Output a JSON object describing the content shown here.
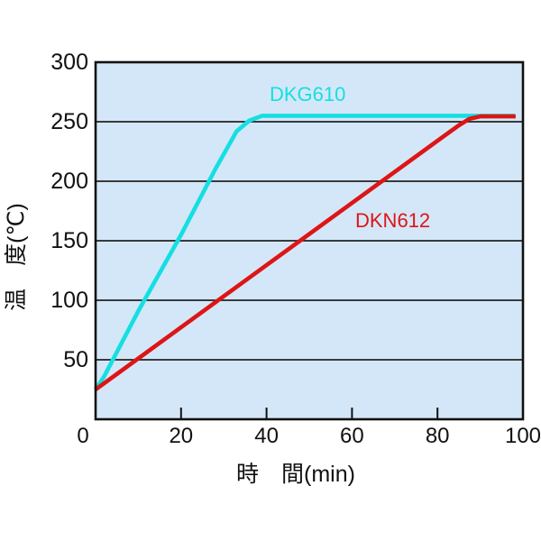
{
  "colors": {
    "page_bg": "#ffffff",
    "plot_bg": "#d4e7f8",
    "grid": "#222222",
    "border": "#111111",
    "tick_label": "#111111"
  },
  "chart_data": {
    "type": "line",
    "title": "",
    "xlabel": "時　間(min)",
    "ylabel": "温　度(℃)",
    "xlim": [
      0,
      100
    ],
    "ylim": [
      0,
      300
    ],
    "grid": "horizontal",
    "gridlines_at": [
      50,
      100,
      150,
      200,
      250
    ],
    "x_ticks": [
      {
        "label": "0",
        "value": 0
      },
      {
        "label": "20",
        "value": 20
      },
      {
        "label": "40",
        "value": 40
      },
      {
        "label": "60",
        "value": 60
      },
      {
        "label": "80",
        "value": 80
      },
      {
        "label": "100",
        "value": 100
      }
    ],
    "y_ticks": [
      {
        "label": "50",
        "value": 50
      },
      {
        "label": "100",
        "value": 100
      },
      {
        "label": "150",
        "value": 150
      },
      {
        "label": "200",
        "value": 200
      },
      {
        "label": "250",
        "value": 250
      },
      {
        "label": "300",
        "value": 300
      }
    ],
    "series": [
      {
        "name": "DKG610",
        "color": "#14dfe2",
        "plateau_temp_c": 255,
        "time_to_plateau_min": 37,
        "points": [
          [
            0,
            25
          ],
          [
            2,
            36
          ],
          [
            10,
            91
          ],
          [
            20,
            155
          ],
          [
            28,
            210
          ],
          [
            33,
            242
          ],
          [
            36,
            251
          ],
          [
            39,
            255
          ],
          [
            98,
            255
          ]
        ]
      },
      {
        "name": "DKN612",
        "color": "#dd1515",
        "plateau_temp_c": 254,
        "time_to_plateau_min": 88,
        "points": [
          [
            0,
            25
          ],
          [
            80,
            234
          ],
          [
            85,
            247
          ],
          [
            87.5,
            252.5
          ],
          [
            90,
            254.5
          ],
          [
            98.3,
            254.5
          ]
        ]
      }
    ]
  }
}
